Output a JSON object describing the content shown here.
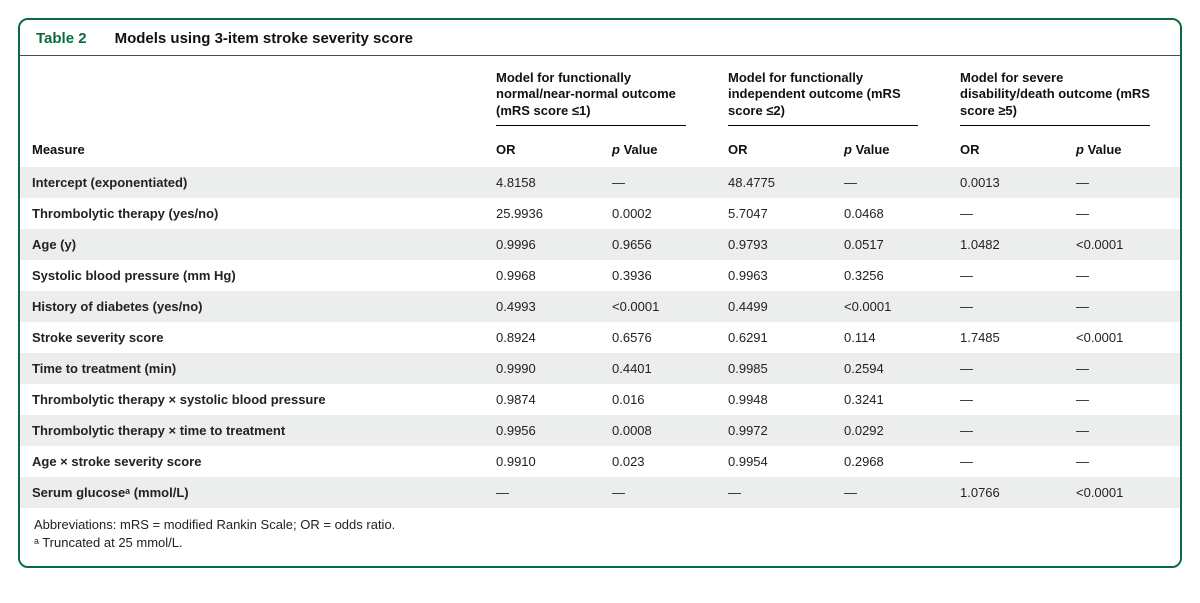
{
  "table": {
    "number": "Table 2",
    "title": "Models using 3-item stroke severity score",
    "models": [
      "Model for functionally normal/near-normal outcome (mRS score ≤1)",
      "Model for functionally independent outcome (mRS score ≤2)",
      "Model for severe disability/death outcome (mRS score ≥5)"
    ],
    "columns": {
      "measure": "Measure",
      "or": "OR",
      "p": "p Value"
    },
    "rows": [
      {
        "measure": "Intercept (exponentiated)",
        "m1_or": "4.8158",
        "m1_p": "—",
        "m2_or": "48.4775",
        "m2_p": "—",
        "m3_or": "0.0013",
        "m3_p": "—"
      },
      {
        "measure": "Thrombolytic therapy (yes/no)",
        "m1_or": "25.9936",
        "m1_p": "0.0002",
        "m2_or": "5.7047",
        "m2_p": "0.0468",
        "m3_or": "—",
        "m3_p": "—"
      },
      {
        "measure": "Age (y)",
        "m1_or": "0.9996",
        "m1_p": "0.9656",
        "m2_or": "0.9793",
        "m2_p": "0.0517",
        "m3_or": "1.0482",
        "m3_p": "<0.0001"
      },
      {
        "measure": "Systolic blood pressure (mm Hg)",
        "m1_or": "0.9968",
        "m1_p": "0.3936",
        "m2_or": "0.9963",
        "m2_p": "0.3256",
        "m3_or": "—",
        "m3_p": "—"
      },
      {
        "measure": "History of diabetes (yes/no)",
        "m1_or": "0.4993",
        "m1_p": "<0.0001",
        "m2_or": "0.4499",
        "m2_p": "<0.0001",
        "m3_or": "—",
        "m3_p": "—"
      },
      {
        "measure": "Stroke severity score",
        "m1_or": "0.8924",
        "m1_p": "0.6576",
        "m2_or": "0.6291",
        "m2_p": "0.114",
        "m3_or": "1.7485",
        "m3_p": "<0.0001"
      },
      {
        "measure": "Time to treatment (min)",
        "m1_or": "0.9990",
        "m1_p": "0.4401",
        "m2_or": "0.9985",
        "m2_p": "0.2594",
        "m3_or": "—",
        "m3_p": "—"
      },
      {
        "measure": "Thrombolytic therapy × systolic blood pressure",
        "m1_or": "0.9874",
        "m1_p": "0.016",
        "m2_or": "0.9948",
        "m2_p": "0.3241",
        "m3_or": "—",
        "m3_p": "—"
      },
      {
        "measure": "Thrombolytic therapy × time to treatment",
        "m1_or": "0.9956",
        "m1_p": "0.0008",
        "m2_or": "0.9972",
        "m2_p": "0.0292",
        "m3_or": "—",
        "m3_p": "—"
      },
      {
        "measure": "Age × stroke severity score",
        "m1_or": "0.9910",
        "m1_p": "0.023",
        "m2_or": "0.9954",
        "m2_p": "0.2968",
        "m3_or": "—",
        "m3_p": "—"
      },
      {
        "measure": "Serum glucoseᵃ (mmol/L)",
        "m1_or": "—",
        "m1_p": "—",
        "m2_or": "—",
        "m2_p": "—",
        "m3_or": "1.0766",
        "m3_p": "<0.0001"
      }
    ],
    "footer": {
      "abbrev": "Abbreviations: mRS = modified Rankin Scale; OR = odds ratio.",
      "note": "ᵃ Truncated at 25 mmol/L."
    }
  }
}
